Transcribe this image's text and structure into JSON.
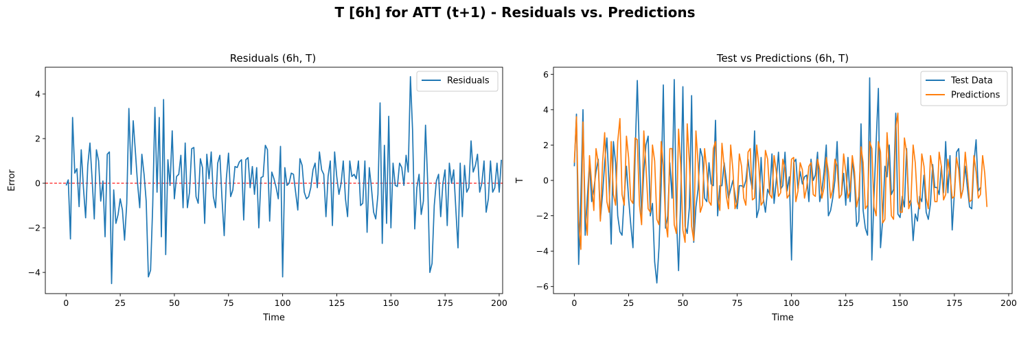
{
  "figure": {
    "title": "T [6h] for ATT (t+1) - Residuals vs. Predictions"
  },
  "colors": {
    "series_blue": "#1f77b4",
    "series_orange": "#ff7f0e",
    "zero_line": "#ff0000"
  },
  "chart_data": [
    {
      "type": "line",
      "title": "Residuals (6h, T)",
      "xlabel": "Time",
      "ylabel": "Error",
      "xlim": [
        -9.6,
        201.6
      ],
      "ylim": [
        -4.95,
        5.2
      ],
      "xticks": [
        0,
        25,
        50,
        75,
        100,
        125,
        150,
        175,
        200
      ],
      "yticks": [
        -4,
        -2,
        0,
        2,
        4
      ],
      "legend_position": "top-right",
      "grid": false,
      "reference_line": {
        "y": 0,
        "style": "dashed",
        "color": "#ff0000"
      },
      "series": [
        {
          "name": "Residuals",
          "color": "#1f77b4",
          "x_start": 0,
          "values": [
            -0.1,
            0.15,
            -2.5,
            2.95,
            0.45,
            0.65,
            -1.05,
            1.5,
            -0.2,
            -1.55,
            0.8,
            1.8,
            0.2,
            -1.6,
            1.5,
            1.0,
            -0.8,
            0.1,
            -2.4,
            1.3,
            1.4,
            -4.5,
            -0.3,
            -1.8,
            -1.4,
            -0.7,
            -1.2,
            -2.55,
            -0.9,
            3.35,
            0.4,
            2.8,
            1.4,
            0.0,
            -1.1,
            1.3,
            0.4,
            -0.8,
            -4.2,
            -3.9,
            -1.0,
            3.4,
            -0.4,
            2.95,
            -2.4,
            3.75,
            -3.2,
            1.05,
            -0.1,
            2.35,
            -0.7,
            0.3,
            0.4,
            1.25,
            -1.1,
            1.8,
            -1.1,
            -0.4,
            1.55,
            1.6,
            -0.6,
            -0.9,
            1.1,
            0.7,
            -1.8,
            1.3,
            0.2,
            1.4,
            -0.6,
            -1.1,
            0.9,
            1.25,
            -0.7,
            -2.35,
            0.2,
            1.35,
            -0.6,
            -0.3,
            0.75,
            0.7,
            0.95,
            1.05,
            -1.65,
            1.05,
            1.15,
            -0.2,
            0.75,
            -0.5,
            0.7,
            -2.0,
            0.25,
            0.3,
            1.7,
            1.5,
            -1.7,
            0.5,
            0.2,
            -0.2,
            -0.7,
            1.65,
            -4.2,
            0.7,
            -0.1,
            0.0,
            0.45,
            0.4,
            -0.4,
            -1.2,
            1.1,
            0.8,
            -0.4,
            -0.7,
            -0.6,
            -0.2,
            0.6,
            0.9,
            -0.2,
            1.4,
            0.6,
            0.4,
            -1.5,
            0.3,
            1.0,
            -1.9,
            1.4,
            0.3,
            -0.5,
            0.0,
            1.0,
            -0.7,
            -1.5,
            1.0,
            0.3,
            0.4,
            0.2,
            1.0,
            -1.0,
            -0.9,
            1.0,
            -2.2,
            0.7,
            -0.2,
            -1.3,
            -1.6,
            -0.5,
            3.6,
            -2.7,
            1.7,
            -1.8,
            3.0,
            -2.0,
            0.9,
            -0.1,
            -0.15,
            0.9,
            0.7,
            -0.1,
            1.25,
            0.5,
            4.78,
            2.4,
            -2.05,
            -0.2,
            0.4,
            -1.4,
            -0.8,
            2.6,
            0.0,
            -4.0,
            -3.6,
            -1.0,
            0.1,
            0.4,
            -1.5,
            0.0,
            0.6,
            -1.9,
            0.9,
            0.0,
            0.6,
            -1.2,
            -2.9,
            0.9,
            -1.5,
            0.8,
            -0.4,
            -0.2,
            1.9,
            0.5,
            0.8,
            1.3,
            -0.4,
            0.0,
            1.0,
            -1.3,
            -0.7,
            1.0,
            -0.4,
            -0.2,
            0.9,
            -0.4,
            1.05
          ]
        }
      ]
    },
    {
      "type": "line",
      "title": "Test vs Predictions (6h, T)",
      "xlabel": "Time",
      "ylabel": "T",
      "xlim": [
        -9.6,
        201.6
      ],
      "ylim": [
        -6.4,
        6.4
      ],
      "xticks": [
        0,
        25,
        50,
        75,
        100,
        125,
        150,
        175,
        200
      ],
      "yticks": [
        -6,
        -4,
        -2,
        0,
        2,
        4,
        6
      ],
      "legend_position": "top-right",
      "grid": false,
      "series": [
        {
          "name": "Test Data",
          "color": "#1f77b4",
          "x_start": 0,
          "values": [
            0.8,
            3.75,
            -4.75,
            -1.0,
            4.0,
            -3.1,
            -1.0,
            1.0,
            -1.2,
            -0.5,
            0.5,
            1.2,
            -2.2,
            -0.8,
            1.0,
            2.4,
            -0.2,
            -3.6,
            2.2,
            1.0,
            -2.0,
            -2.9,
            -3.1,
            -0.9,
            0.8,
            -1.0,
            -2.5,
            -3.8,
            1.4,
            5.65,
            1.3,
            -2.0,
            0.5,
            2.0,
            2.5,
            -2.0,
            -1.3,
            -4.6,
            -5.8,
            -3.8,
            -0.2,
            5.4,
            -2.7,
            -2.0,
            1.0,
            -1.0,
            5.7,
            -2.0,
            -5.1,
            -1.1,
            5.3,
            -2.6,
            -3.0,
            -1.5,
            4.8,
            -3.5,
            -1.5,
            -0.5,
            1.8,
            1.3,
            -1.0,
            -1.2,
            1.0,
            -0.2,
            -0.3,
            3.4,
            -2.0,
            -0.3,
            -0.3,
            1.0,
            0.0,
            -1.0,
            -0.5,
            0.0,
            -0.8,
            -1.6,
            -0.3,
            -0.3,
            -0.4,
            0.0,
            1.2,
            0.1,
            -0.5,
            2.8,
            -2.1,
            -1.6,
            1.3,
            -1.0,
            -1.8,
            -0.5,
            -0.8,
            1.5,
            -1.3,
            0.0,
            1.6,
            -0.5,
            -0.3,
            1.6,
            -0.6,
            0.2,
            -4.5,
            1.0,
            1.2,
            -0.5,
            0.5,
            -0.2,
            0.2,
            0.3,
            -1.2,
            1.2,
            0.0,
            0.3,
            1.6,
            -1.2,
            -0.6,
            0.5,
            2.0,
            -2.0,
            -1.7,
            -1.0,
            0.0,
            2.2,
            -1.0,
            -0.8,
            0.4,
            -1.4,
            1.3,
            -1.2,
            1.2,
            0.0,
            -2.6,
            -2.3,
            3.2,
            -1.7,
            -2.7,
            -3.1,
            5.8,
            -4.5,
            -0.9,
            2.2,
            5.2,
            -3.8,
            -2.2,
            0.8,
            0.2,
            2.0,
            -0.8,
            -0.5,
            3.8,
            -1.9,
            -2.1,
            -0.9,
            -1.5,
            1.8,
            -1.3,
            -1.1,
            -3.4,
            -1.9,
            -2.3,
            -0.9,
            -1.2,
            0.3,
            -1.8,
            -2.2,
            -1.3,
            0.9,
            -0.4,
            -0.4,
            -0.8,
            0.8,
            -0.7,
            2.2,
            -0.7,
            1.4,
            -2.8,
            -0.7,
            1.6,
            1.8,
            -1.0,
            -0.5,
            0.8,
            -0.4,
            -1.5,
            -1.6,
            1.0,
            2.3,
            -0.6,
            -0.4
          ]
        },
        {
          "name": "Predictions",
          "color": "#ff7f0e",
          "x_start": 0,
          "values": [
            1.0,
            3.6,
            -2.3,
            -3.9,
            3.3,
            -1.8,
            -3.1,
            1.4,
            -0.2,
            -1.7,
            1.8,
            1.0,
            -2.3,
            1.0,
            2.7,
            -1.2,
            -1.8,
            2.2,
            -0.8,
            -1.4,
            2.2,
            3.5,
            -0.8,
            -1.4,
            2.5,
            1.3,
            -1.1,
            -1.3,
            2.4,
            2.3,
            -1.4,
            -2.5,
            2.8,
            0.8,
            -1.6,
            -1.8,
            2.0,
            1.1,
            -2.2,
            -2.5,
            2.2,
            0.8,
            -2.3,
            -3.2,
            1.8,
            1.8,
            -2.5,
            -3.0,
            2.9,
            0.9,
            -2.8,
            -3.5,
            3.2,
            1.0,
            -2.6,
            -3.4,
            2.8,
            1.0,
            -1.8,
            -1.4,
            1.8,
            0.6,
            -1.2,
            -1.4,
            1.8,
            2.2,
            -1.0,
            -1.7,
            2.1,
            0.8,
            -0.9,
            -1.6,
            2.0,
            0.6,
            -1.6,
            -1.2,
            1.5,
            0.8,
            -1.0,
            -1.4,
            1.6,
            1.8,
            -1.1,
            -1.0,
            2.0,
            0.8,
            -1.4,
            -1.2,
            1.7,
            1.2,
            -0.8,
            -1.0,
            1.4,
            0.5,
            -0.9,
            -0.7,
            1.2,
            0.6,
            -1.0,
            -0.8,
            1.2,
            1.3,
            -1.2,
            -0.6,
            1.0,
            0.6,
            -1.0,
            -0.4,
            0.8,
            1.0,
            -0.8,
            -0.9,
            1.2,
            0.6,
            -1.0,
            -0.4,
            1.3,
            0.5,
            -1.0,
            -0.5,
            1.2,
            0.8,
            -1.0,
            -0.8,
            1.5,
            0.5,
            -1.0,
            -0.6,
            1.4,
            0.5,
            -1.5,
            -0.9,
            1.9,
            1.0,
            -1.6,
            -1.4,
            2.2,
            1.8,
            -1.5,
            -2.0,
            2.2,
            1.6,
            -2.4,
            -2.2,
            2.7,
            0.8,
            -2.0,
            -2.2,
            3.0,
            3.8,
            -1.8,
            -1.8,
            2.4,
            1.6,
            -1.6,
            -1.2,
            2.0,
            1.0,
            -1.2,
            -1.6,
            1.5,
            0.8,
            -1.0,
            -1.6,
            1.4,
            0.6,
            -1.2,
            -1.2,
            1.6,
            0.8,
            -1.1,
            -0.8,
            1.2,
            0.3,
            -1.0,
            -0.9,
            1.3,
            0.6,
            -1.0,
            -0.5,
            1.6,
            0.3,
            -1.2,
            -1.1,
            1.4,
            0.5,
            -1.0,
            -0.8,
            1.4,
            0.4,
            -1.5
          ]
        }
      ]
    }
  ]
}
